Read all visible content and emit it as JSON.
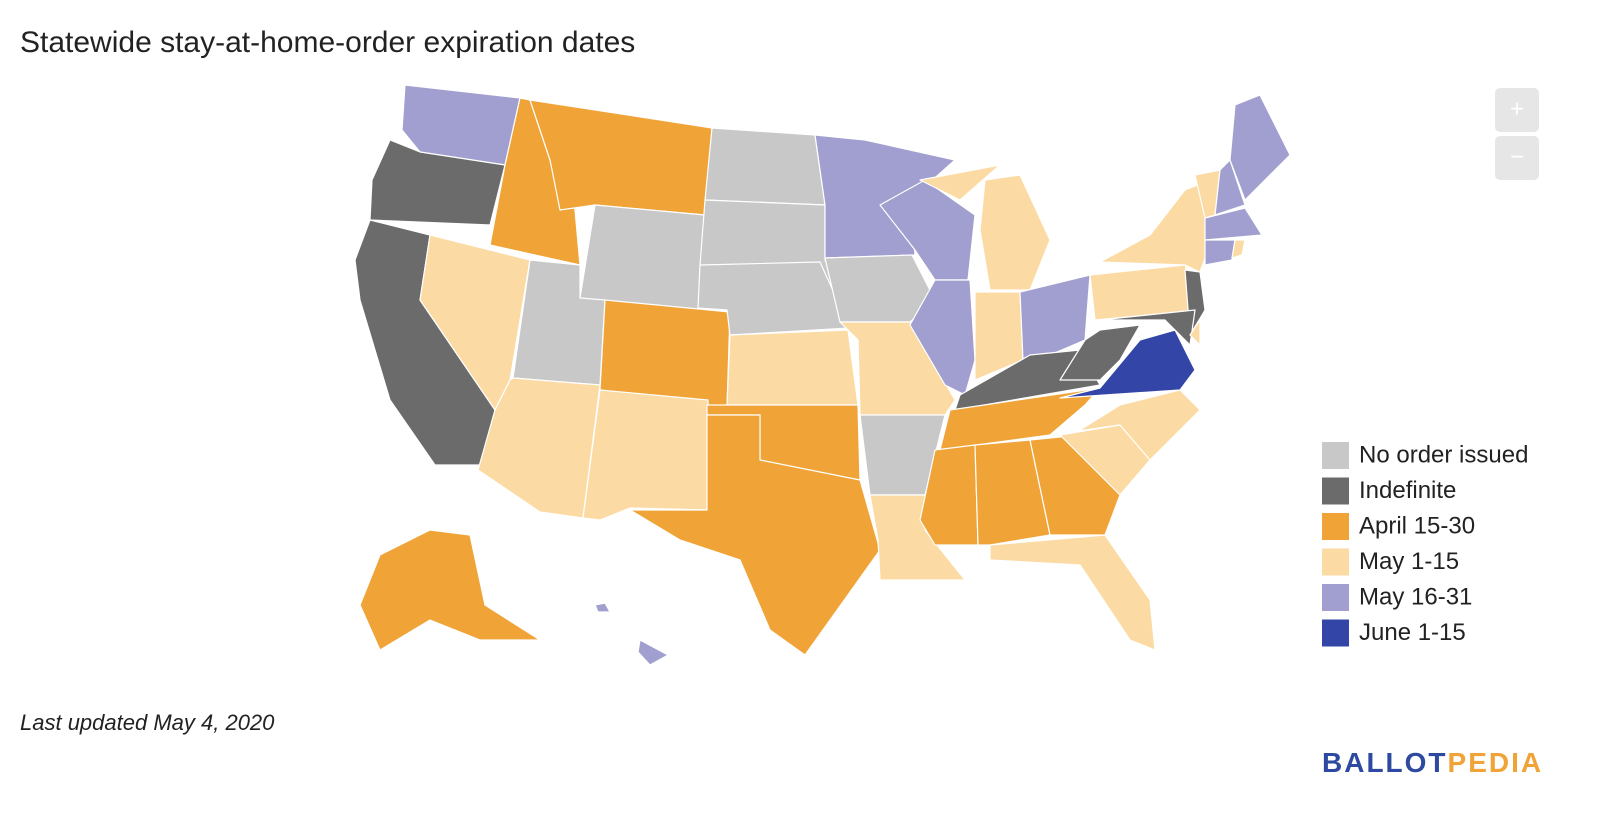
{
  "map": {
    "title": "Statewide stay-at-home-order expiration dates",
    "legend": [
      {
        "label": "No order issued",
        "color": "#c8c8c8"
      },
      {
        "label": "Indefinite",
        "color": "#6b6b6b"
      },
      {
        "label": "April 15-30",
        "color": "#f0a336"
      },
      {
        "label": "May 1-15",
        "color": "#fcdaa3"
      },
      {
        "label": "May 16-31",
        "color": "#a19fcf"
      },
      {
        "label": "June 1-15",
        "color": "#3346a8"
      }
    ],
    "regions": [
      4,
      1,
      1,
      2,
      3,
      2,
      0,
      0,
      3,
      2,
      3,
      0,
      0,
      0,
      3,
      2,
      2,
      4,
      0,
      3,
      0,
      3,
      4,
      4,
      3,
      3,
      4,
      1,
      2,
      2,
      2,
      2,
      3,
      3,
      3,
      5,
      1,
      3,
      3,
      1,
      1,
      3,
      3,
      4,
      4,
      4,
      4,
      3,
      2,
      4
    ],
    "footnote": "Last updated May 4, 2020",
    "zoom": {
      "in": "+",
      "out": "−"
    },
    "logo": {
      "left": "BALLOT",
      "right": "PEDIA"
    }
  }
}
